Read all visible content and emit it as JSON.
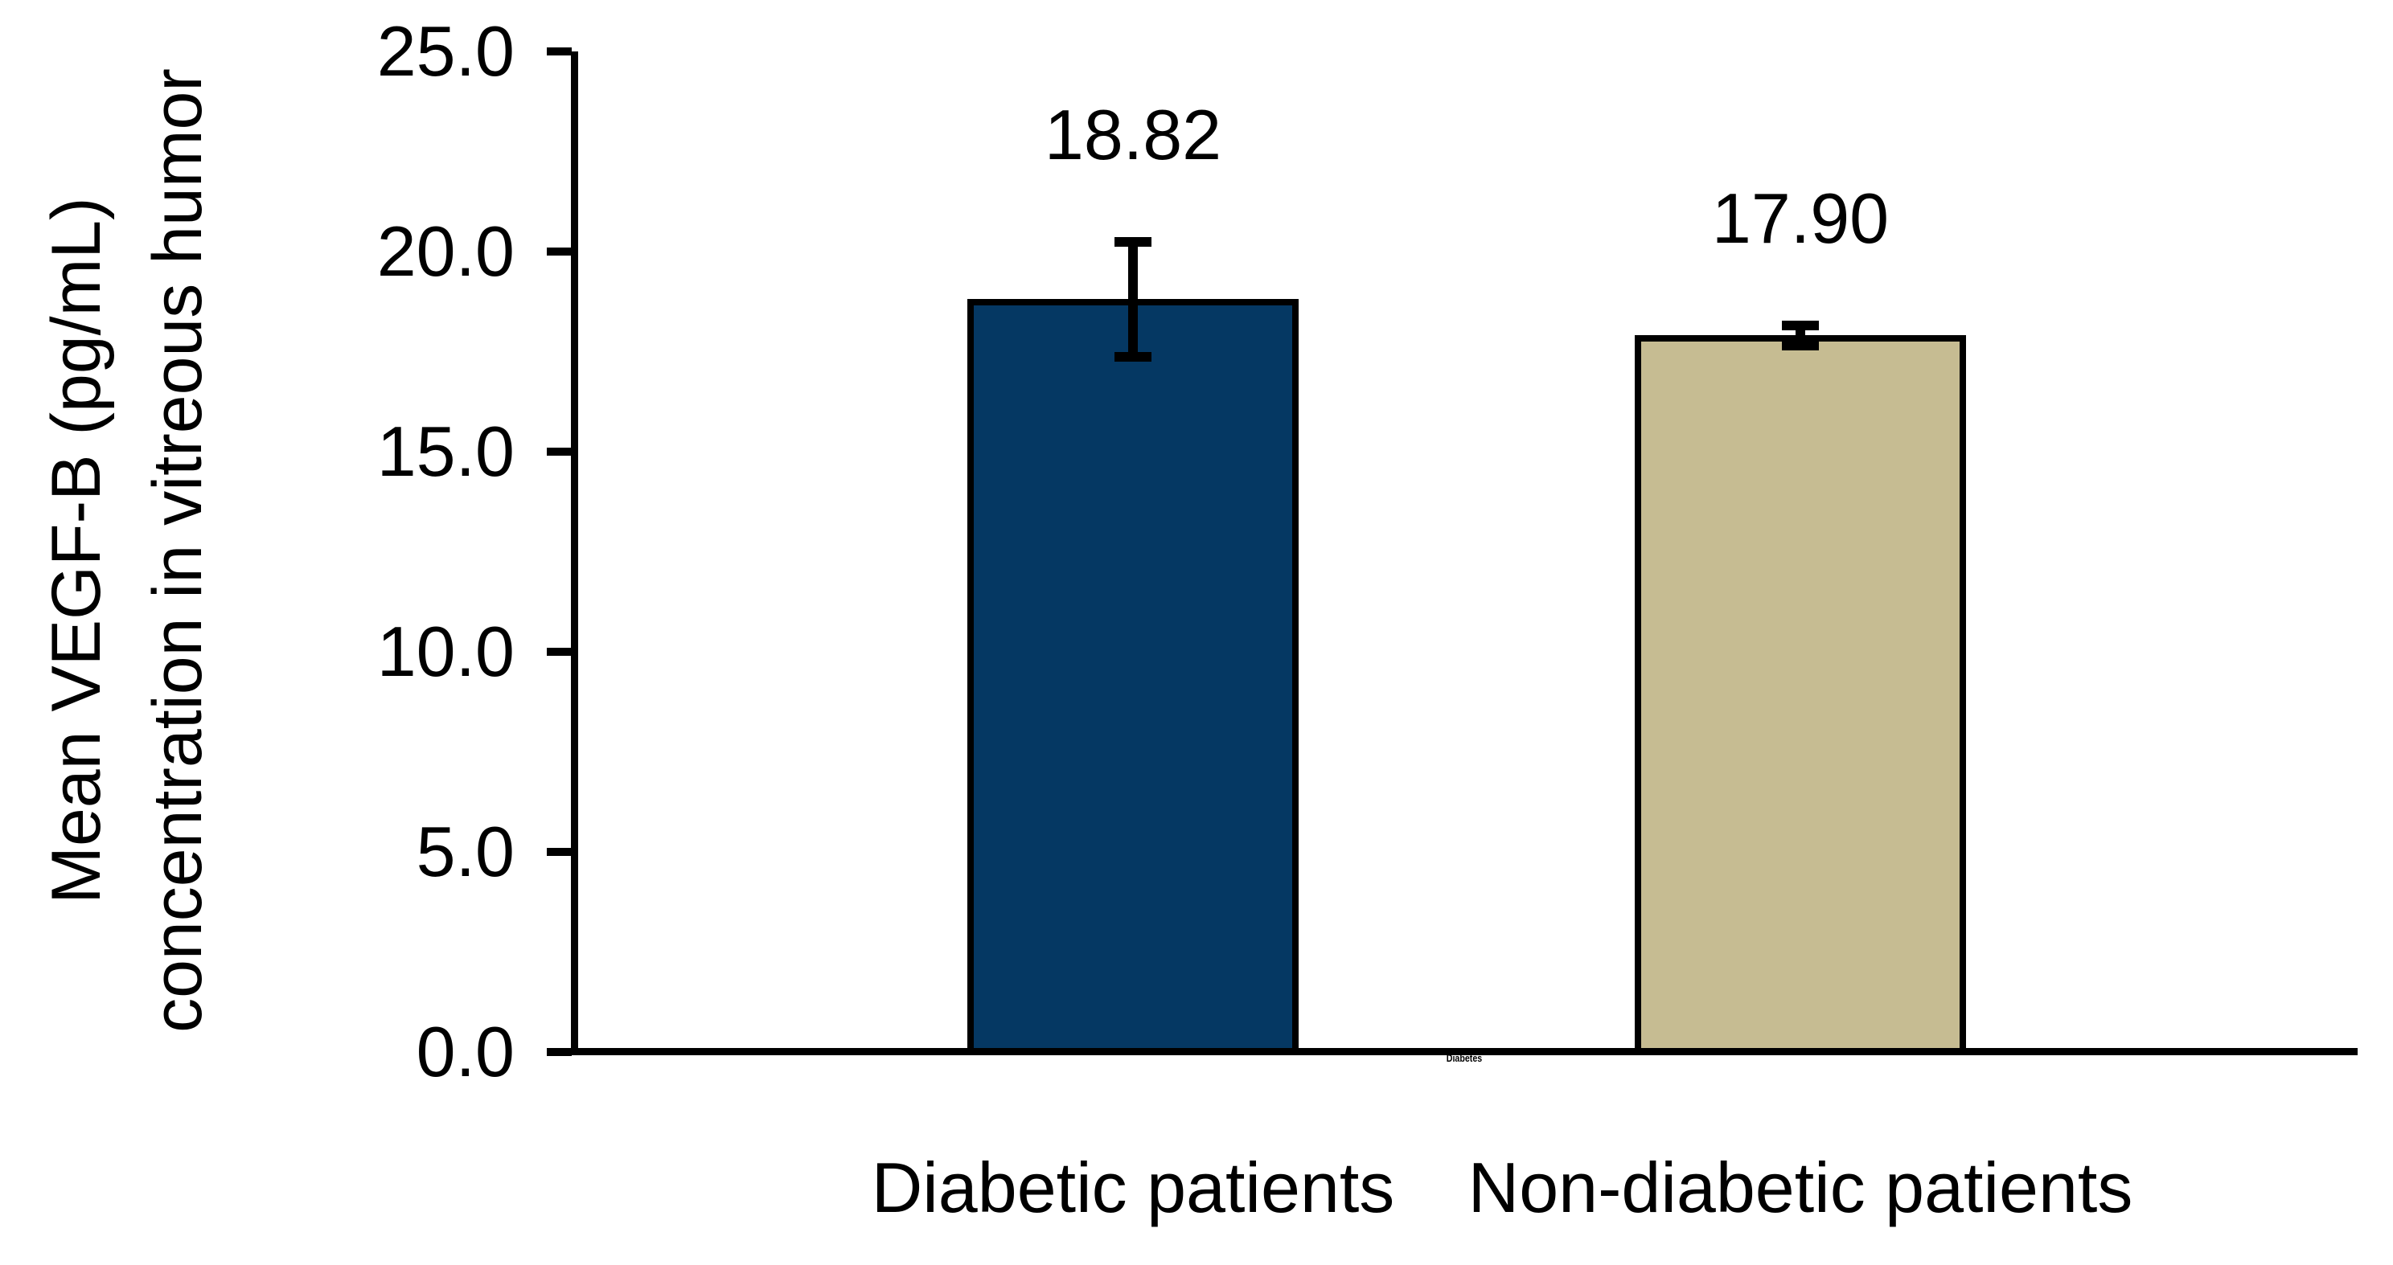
{
  "chart_data": {
    "type": "bar",
    "title": "",
    "categories": [
      "Diabetic patients",
      "Non-diabetic patients"
    ],
    "values": [
      18.82,
      17.9
    ],
    "value_labels": [
      "18.82",
      "17.90"
    ],
    "error_plus": [
      1.42,
      0.25
    ],
    "error_minus": [
      1.46,
      0.25
    ],
    "bar_colors": [
      "#053863",
      "#c6bc92"
    ],
    "bar_edge_color": "#000000",
    "error_bar_color": "#000000",
    "ylabel_lines": [
      "Mean VEGF-B (pg/mL)",
      "concentration in vitreous humor"
    ],
    "ylabel": "Mean VEGF-B (pg/mL) concentration in vitreous humor",
    "xlabel": "",
    "y_tick_labels": [
      "0.0",
      "5.0",
      "10.0",
      "15.0",
      "20.0",
      "25.0"
    ],
    "y_tick_values": [
      0,
      5,
      10,
      15,
      20,
      25
    ],
    "ylim": [
      0,
      25
    ],
    "grid": false,
    "legend": "none",
    "background_color": "#ffffff",
    "axis_color": "#000000",
    "x_axis_micro_label": "Diabetes"
  }
}
